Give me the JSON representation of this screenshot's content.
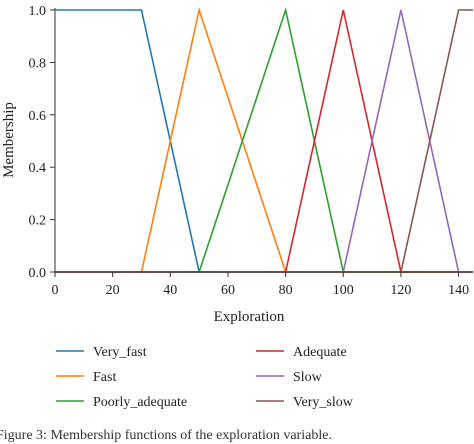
{
  "chart_data": {
    "type": "line",
    "xlabel": "Exploration",
    "ylabel": "Membership",
    "xlim": [
      0,
      145
    ],
    "ylim": [
      0,
      1.0
    ],
    "xticks": [
      0,
      20,
      40,
      60,
      80,
      100,
      120,
      140
    ],
    "yticks": [
      0.0,
      0.2,
      0.4,
      0.6,
      0.8,
      1.0
    ],
    "xtick_labels": [
      "0",
      "20",
      "40",
      "60",
      "80",
      "100",
      "120",
      "140"
    ],
    "ytick_labels": [
      "0.0",
      "0.2",
      "0.4",
      "0.6",
      "0.8",
      "1.0"
    ],
    "grid": false,
    "legend_placement": "bottom",
    "series": [
      {
        "name": "Very_fast",
        "color": "#1f77b4",
        "x": [
          0,
          30,
          50,
          145
        ],
        "y": [
          1,
          1,
          0,
          0
        ]
      },
      {
        "name": "Fast",
        "color": "#ff7f0e",
        "x": [
          0,
          30,
          50,
          80,
          145
        ],
        "y": [
          0,
          0,
          1,
          0,
          0
        ]
      },
      {
        "name": "Poorly_adequate",
        "color": "#2ca02c",
        "x": [
          0,
          50,
          80,
          100,
          145
        ],
        "y": [
          0,
          0,
          1,
          0,
          0
        ]
      },
      {
        "name": "Adequate",
        "color": "#d62728",
        "x": [
          0,
          80,
          100,
          120,
          145
        ],
        "y": [
          0,
          0,
          1,
          0,
          0
        ]
      },
      {
        "name": "Slow",
        "color": "#9467bd",
        "x": [
          0,
          100,
          120,
          140,
          145
        ],
        "y": [
          0,
          0,
          1,
          0,
          0
        ]
      },
      {
        "name": "Very_slow",
        "color": "#8c564b",
        "x": [
          0,
          120,
          140,
          145
        ],
        "y": [
          0,
          0,
          1,
          1
        ]
      }
    ]
  },
  "caption": "Figure 3: Membership functions of the exploration variable."
}
